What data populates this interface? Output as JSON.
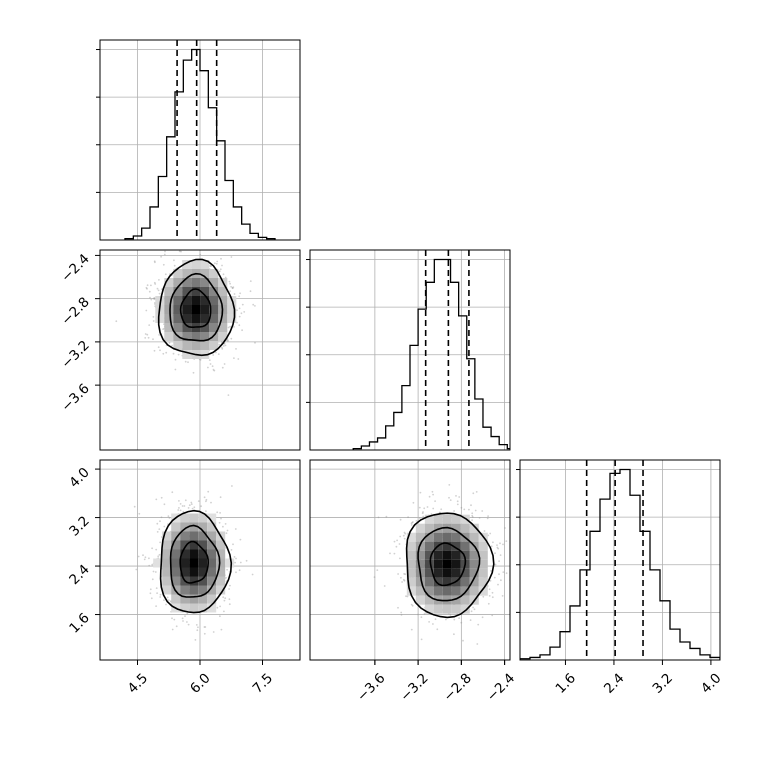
{
  "chart_data": {
    "type": "corner",
    "parameters": [
      {
        "id": "p1",
        "label": "",
        "range": [
          3.6,
          8.4
        ],
        "ticks": [
          4.5,
          6.0,
          7.5
        ],
        "tick_labels": [
          "4.5",
          "6.0",
          "7.5"
        ],
        "quantiles": [
          5.45,
          5.92,
          6.4
        ],
        "histogram": {
          "bin_start": 4.2,
          "bin_width": 0.2,
          "counts": [
            1,
            3,
            9,
            25,
            48,
            78,
            112,
            136,
            144,
            128,
            100,
            75,
            45,
            25,
            12,
            5,
            2,
            1
          ]
        }
      },
      {
        "id": "p2",
        "label": "",
        "range": [
          -4.2,
          -2.35
        ],
        "ticks": [
          -3.6,
          -3.2,
          -2.8,
          -2.4
        ],
        "tick_labels": [
          "−3.6",
          "−3.2",
          "−2.8",
          "−2.4"
        ],
        "quantiles": [
          -3.13,
          -2.92,
          -2.73
        ],
        "histogram": {
          "bin_start": -3.8,
          "bin_width": 0.075,
          "counts": [
            1,
            3,
            6,
            9,
            18,
            28,
            48,
            78,
            105,
            125,
            142,
            142,
            125,
            100,
            68,
            38,
            17,
            10,
            4,
            1
          ]
        }
      },
      {
        "id": "p3",
        "label": "",
        "range": [
          0.85,
          4.15
        ],
        "ticks": [
          1.6,
          2.4,
          3.2,
          4.0
        ],
        "tick_labels": [
          "1.6",
          "2.4",
          "3.2",
          "4.0"
        ],
        "quantiles": [
          1.95,
          2.42,
          2.88
        ],
        "histogram": {
          "bin_start": 0.85,
          "bin_width": 0.165,
          "counts": [
            1,
            2,
            4,
            10,
            22,
            42,
            70,
            100,
            125,
            145,
            148,
            128,
            100,
            70,
            46,
            24,
            14,
            9,
            4,
            2
          ]
        }
      }
    ],
    "density_panels": [
      {
        "x": "p1",
        "y": "p2",
        "x_center": 5.9,
        "y_center": -2.9,
        "x_sd": 0.45,
        "y_sd": 0.22
      },
      {
        "x": "p1",
        "y": "p3",
        "x_center": 5.85,
        "y_center": 2.45,
        "x_sd": 0.42,
        "y_sd": 0.42
      },
      {
        "x": "p2",
        "y": "p3",
        "x_center": -2.93,
        "y_center": 2.43,
        "x_sd": 0.2,
        "y_sd": 0.43
      }
    ],
    "grid": true,
    "contour_levels": 3
  }
}
